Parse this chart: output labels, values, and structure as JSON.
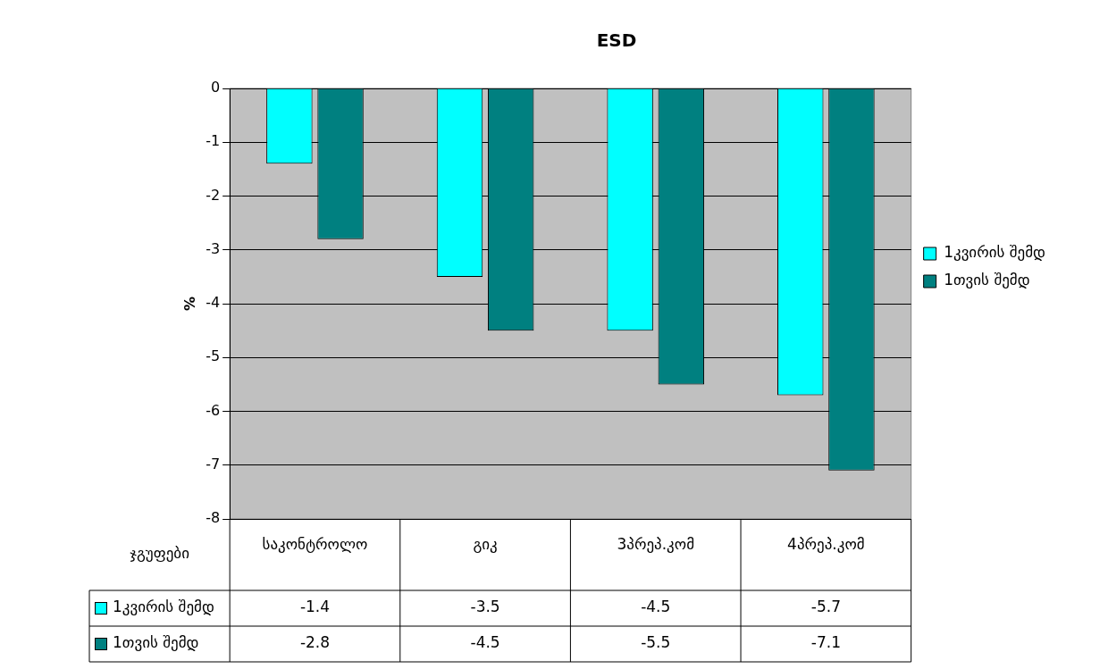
{
  "chart_data": {
    "type": "bar",
    "title": "ESD",
    "ylabel": "%",
    "xlabel": "ჯგუფები",
    "categories": [
      "საკონტროლო",
      "გიკ",
      "3პრეპ.კომ",
      "4პრეპ.კომ"
    ],
    "series": [
      {
        "name": "1კვირის შემდ",
        "color": "#00ffff",
        "values": [
          -1.4,
          -3.5,
          -4.5,
          -5.7
        ]
      },
      {
        "name": "1თვის შემდ",
        "color": "#008080",
        "values": [
          -2.8,
          -4.5,
          -5.5,
          -7.1
        ]
      }
    ],
    "ylim": [
      -8,
      0
    ],
    "yticks": [
      -8,
      -7,
      -6,
      -5,
      -4,
      -3,
      -2,
      -1,
      0
    ],
    "grid": "y",
    "legend": "right",
    "data_labels": true
  }
}
